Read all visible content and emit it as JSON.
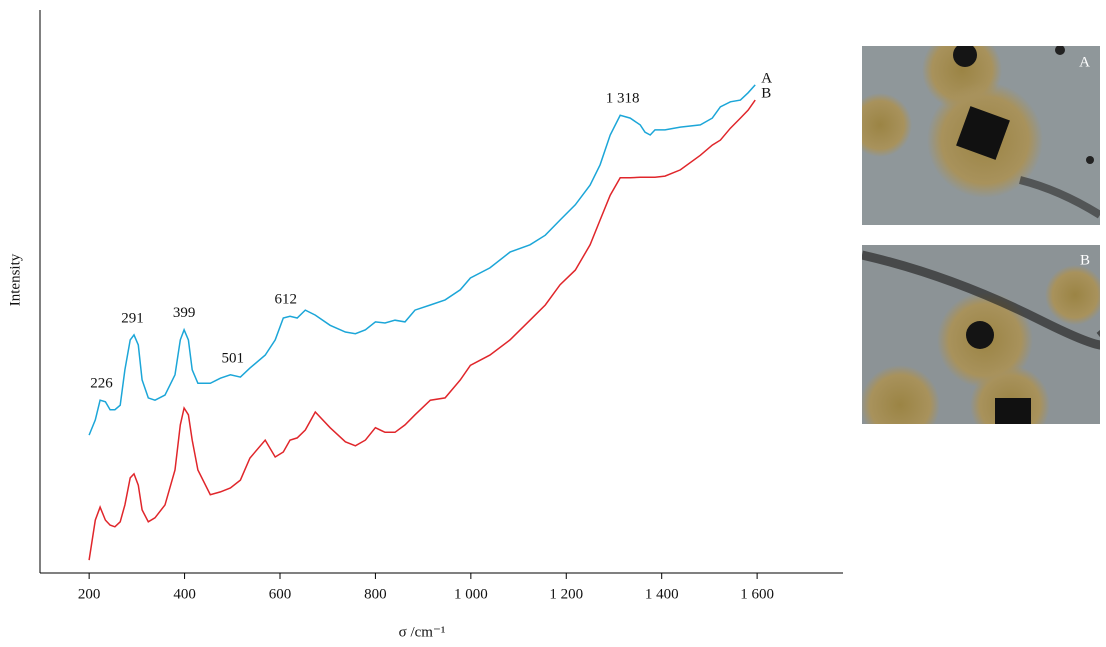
{
  "chart_data": {
    "type": "line",
    "x_label": "σ /cm⁻¹",
    "y_label": "Intensity",
    "x": [
      200,
      213,
      223,
      234,
      244,
      254,
      265,
      275,
      286,
      294,
      303,
      311,
      324,
      338,
      359,
      380,
      391,
      399,
      408,
      416,
      428,
      454,
      475,
      496,
      517,
      537,
      569,
      590,
      607,
      621,
      636,
      653,
      674,
      705,
      737,
      758,
      779,
      800,
      820,
      841,
      862,
      883,
      915,
      946,
      978,
      999,
      1040,
      1082,
      1124,
      1156,
      1187,
      1219,
      1250,
      1271,
      1292,
      1313,
      1334,
      1355,
      1365,
      1376,
      1386,
      1407,
      1439,
      1481,
      1506,
      1523,
      1544,
      1565,
      1581,
      1596
    ],
    "series": [
      {
        "name": "A",
        "color": "#1ca6d8",
        "values": [
          24.5,
          27.2,
          30.7,
          30.4,
          29.0,
          29.0,
          29.8,
          36.1,
          41.4,
          42.3,
          40.5,
          34.3,
          31.1,
          30.7,
          31.6,
          35.2,
          41.4,
          43.2,
          41.4,
          36.1,
          33.7,
          33.7,
          34.6,
          35.2,
          34.8,
          36.4,
          38.7,
          41.4,
          45.3,
          45.6,
          45.3,
          46.7,
          45.8,
          44.0,
          42.8,
          42.5,
          43.2,
          44.6,
          44.4,
          44.9,
          44.6,
          46.7,
          47.6,
          48.5,
          50.3,
          52.4,
          54.2,
          57.0,
          58.3,
          60.0,
          62.7,
          65.4,
          68.9,
          72.5,
          77.8,
          81.3,
          80.8,
          79.6,
          78.3,
          77.8,
          78.7,
          78.7,
          79.2,
          79.6,
          80.8,
          82.8,
          83.7,
          84.0,
          85.3,
          86.7
        ]
      },
      {
        "name": "B",
        "color": "#e0262b",
        "values": [
          2.3,
          9.4,
          11.7,
          9.4,
          8.5,
          8.2,
          9.1,
          12.1,
          16.9,
          17.6,
          15.6,
          11.2,
          9.1,
          9.8,
          12.1,
          18.3,
          26.3,
          29.3,
          28.1,
          23.6,
          18.3,
          13.9,
          14.4,
          15.1,
          16.5,
          20.4,
          23.6,
          20.6,
          21.5,
          23.6,
          24.0,
          25.4,
          28.6,
          25.8,
          23.3,
          22.6,
          23.6,
          25.8,
          25.0,
          25.0,
          26.3,
          28.1,
          30.7,
          31.1,
          34.3,
          36.9,
          38.7,
          41.4,
          44.9,
          47.6,
          51.2,
          53.8,
          58.3,
          62.7,
          67.1,
          70.2,
          70.2,
          70.3,
          70.3,
          70.3,
          70.3,
          70.5,
          71.6,
          74.2,
          76.0,
          76.9,
          79.0,
          80.8,
          82.2,
          84.0
        ]
      }
    ],
    "peak_labels": [
      {
        "value": 226,
        "label": "226"
      },
      {
        "value": 291,
        "label": "291"
      },
      {
        "value": 399,
        "label": "399"
      },
      {
        "value": 501,
        "label": "501"
      },
      {
        "value": 612,
        "label": "612"
      },
      {
        "value": 1318,
        "label": "1 318"
      }
    ],
    "xlim": [
      97,
      1780
    ],
    "ylim": [
      0,
      100
    ],
    "xticks": [
      200,
      400,
      600,
      800,
      {
        "value": 1000,
        "label": "1 000"
      },
      {
        "value": 1200,
        "label": "1 200"
      },
      {
        "value": 1400,
        "label": "1 400"
      },
      {
        "value": 1600,
        "label": "1 600"
      }
    ],
    "images": [
      {
        "label": "A"
      },
      {
        "label": "B"
      }
    ]
  }
}
